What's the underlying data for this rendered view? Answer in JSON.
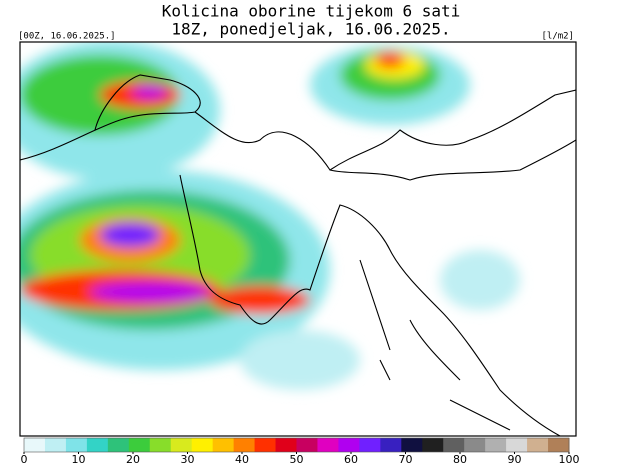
{
  "title": "Kolicina oborine tijekom 6 sati",
  "subtitle": "18Z, ponedjeljak, 16.06.2025.",
  "run_label": "[00Z, 16.06.2025.]",
  "unit_label": "[l/m2]",
  "colorbar": {
    "ticks": [
      0,
      10,
      20,
      30,
      40,
      50,
      60,
      70,
      80,
      90,
      100
    ],
    "colors": [
      "#e8f8fa",
      "#bfeff3",
      "#7fe3e8",
      "#33d3c6",
      "#2ec27a",
      "#3ccc3c",
      "#88dd2a",
      "#d8ea1e",
      "#fff000",
      "#ffc000",
      "#ff8000",
      "#ff3000",
      "#e0001a",
      "#c80060",
      "#e000c0",
      "#b000f0",
      "#7020ff",
      "#3820c0",
      "#101040",
      "#202020",
      "#606060",
      "#8a8a8a",
      "#b0b0b0",
      "#d8d8d8",
      "#d0b090",
      "#b08058"
    ]
  }
}
